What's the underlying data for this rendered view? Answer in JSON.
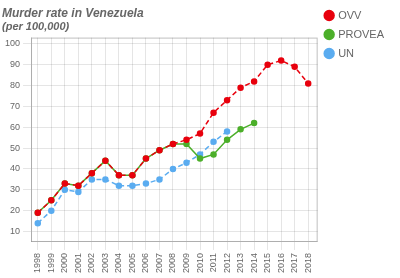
{
  "chart_data": {
    "type": "line",
    "title": "Murder rate in Venezuela",
    "subtitle": "(per 100,000)",
    "x": [
      1998,
      1999,
      2000,
      2001,
      2002,
      2003,
      2004,
      2005,
      2006,
      2007,
      2008,
      2009,
      2010,
      2011,
      2012,
      2013,
      2014,
      2015,
      2016,
      2017,
      2018
    ],
    "series": [
      {
        "name": "OVV",
        "color": "#e8000d",
        "line_style": "dashed",
        "marker": "circle",
        "values": [
          19,
          25,
          33,
          32,
          38,
          44,
          37,
          37,
          45,
          49,
          52,
          54,
          57,
          67,
          73,
          79,
          82,
          90,
          92,
          89,
          81
        ]
      },
      {
        "name": "PROVEA",
        "color": "#4caf2a",
        "line_style": "solid",
        "marker": "circle",
        "values": [
          19,
          25,
          33,
          32,
          38,
          44,
          37,
          37,
          45,
          49,
          52,
          52,
          45,
          47,
          54,
          59,
          62,
          null,
          null,
          null,
          null
        ]
      },
      {
        "name": "UN",
        "color": "#5aacf0",
        "line_style": "dashed",
        "marker": "circle",
        "values": [
          14,
          20,
          30,
          29,
          35,
          35,
          32,
          32,
          33,
          35,
          40,
          43,
          47,
          53,
          58,
          null,
          null,
          null,
          null,
          null,
          null
        ]
      }
    ],
    "xlim": [
      1997.5,
      2018.7
    ],
    "ylim": [
      5,
      103
    ],
    "xticks": [
      1998,
      1999,
      2000,
      2001,
      2002,
      2003,
      2004,
      2005,
      2006,
      2007,
      2008,
      2009,
      2010,
      2011,
      2012,
      2013,
      2014,
      2015,
      2016,
      2017,
      2018
    ],
    "yticks": [
      10,
      20,
      30,
      40,
      50,
      60,
      70,
      80,
      90,
      100
    ],
    "grid": true,
    "legend": "right"
  }
}
